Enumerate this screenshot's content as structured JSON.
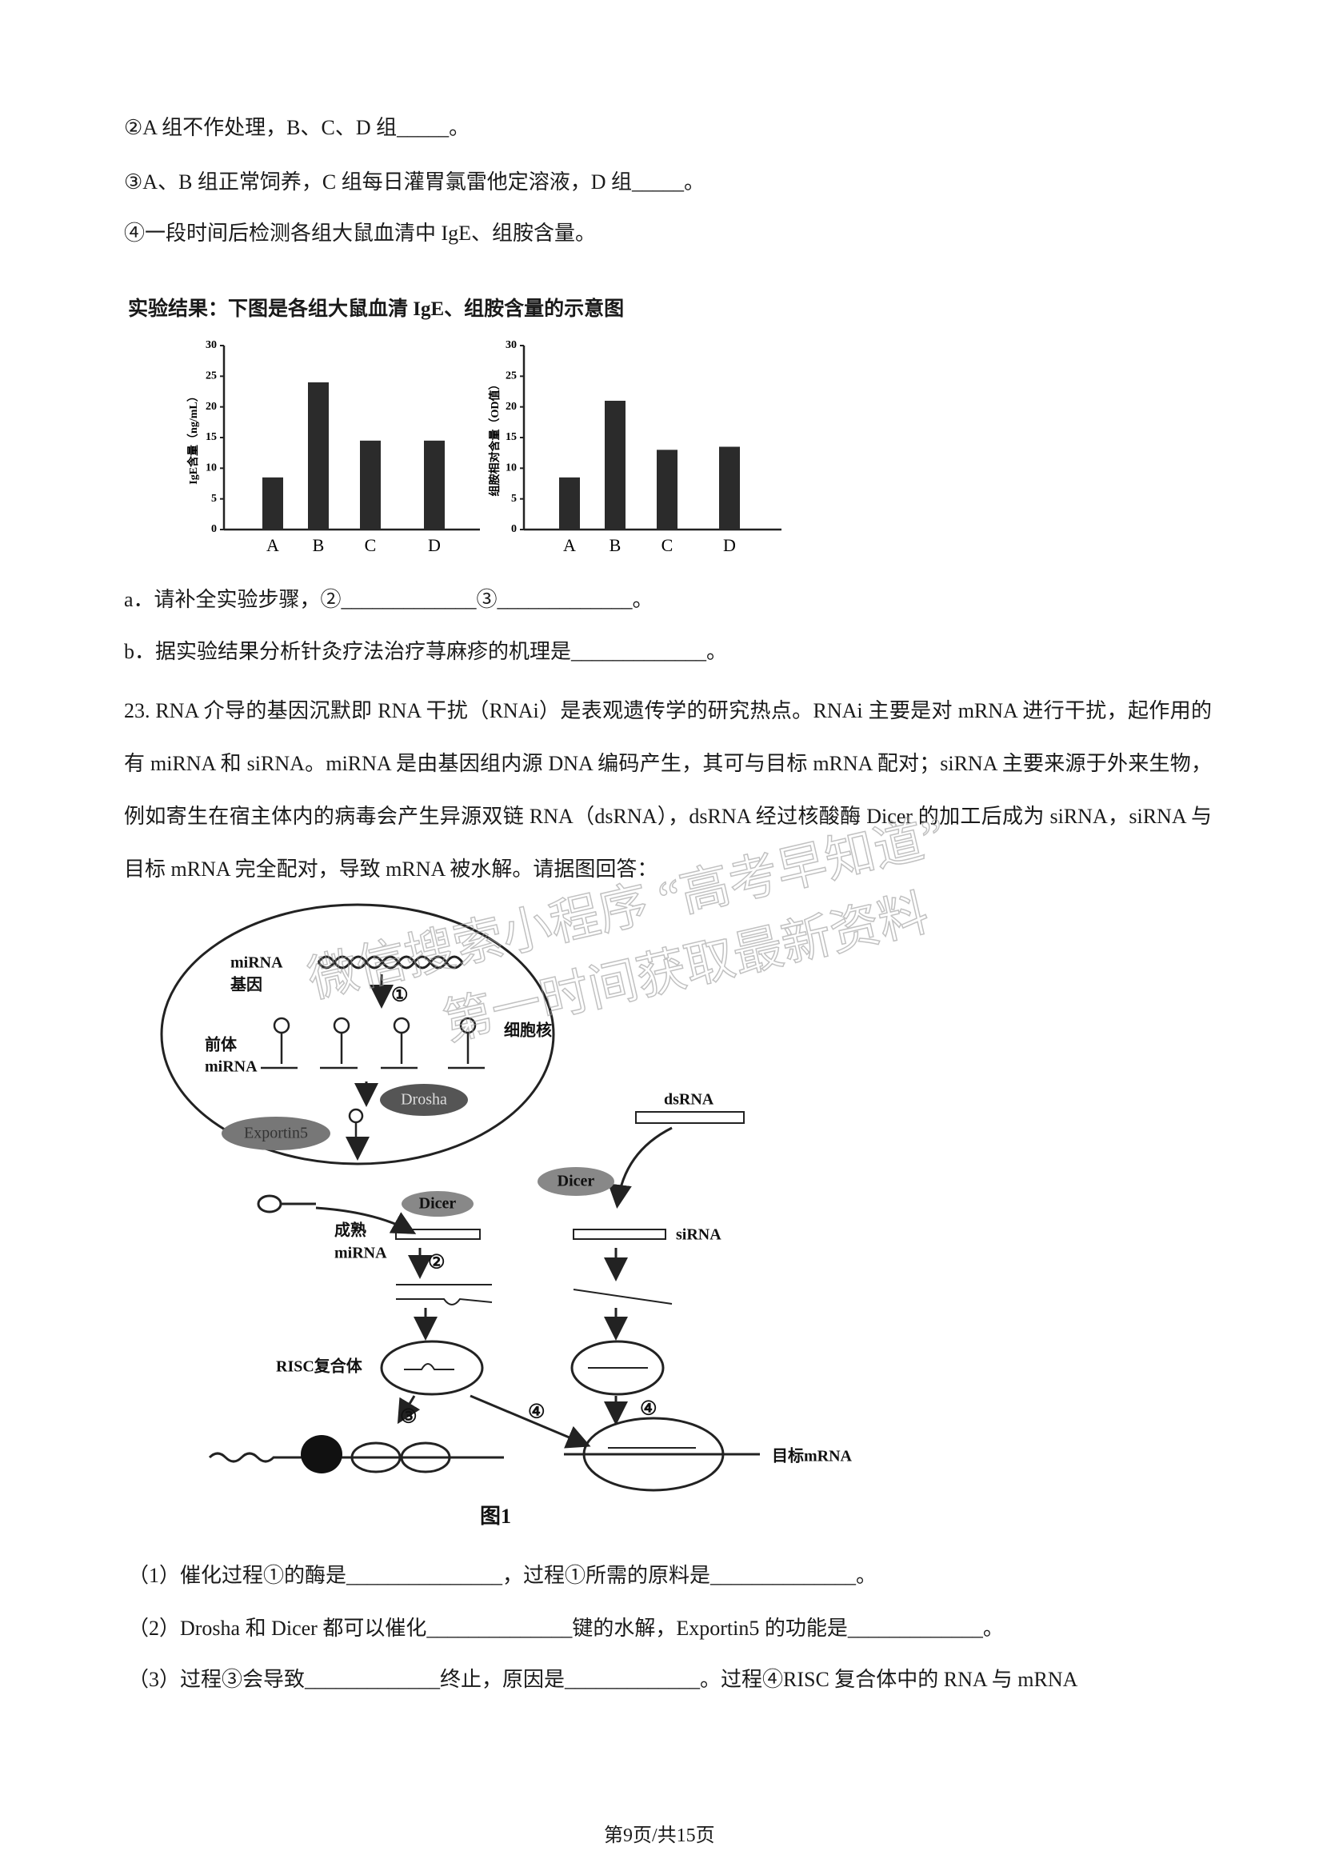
{
  "steps": [
    "②A 组不作处理，B、C、D 组_____。",
    "③A、B 组正常饲养，C 组每日灌胃氯雷他定溶液，D 组_____。",
    "④一段时间后检测各组大鼠血清中 IgE、组胺含量。"
  ],
  "figure_title": "实验结果：下图是各组大鼠血清 IgE、组胺含量的示意图",
  "chart_data": [
    {
      "type": "bar",
      "ylabel": "IgE含量（ng/mL）",
      "categories": [
        "A",
        "B",
        "C",
        "D"
      ],
      "values": [
        8.5,
        24,
        14.5,
        14.5
      ],
      "ylim": [
        0,
        30
      ],
      "yticks": [
        0,
        5,
        10,
        15,
        20,
        25,
        30
      ],
      "color": "#2b2b2b"
    },
    {
      "type": "bar",
      "ylabel": "组胺相对含量（OD值）",
      "categories": [
        "A",
        "B",
        "C",
        "D"
      ],
      "values": [
        8.5,
        21,
        13,
        13.5
      ],
      "ylim": [
        0,
        30
      ],
      "yticks": [
        0,
        5,
        10,
        15,
        20,
        25,
        30
      ],
      "color": "#2b2b2b"
    }
  ],
  "sub_questions": [
    "a．请补全实验步骤，②_____________③_____________。",
    "b．据实验结果分析针灸疗法治疗荨麻疹的机理是_____________。"
  ],
  "question_23": "23. RNA 介导的基因沉默即 RNA 干扰（RNAi）是表观遗传学的研究热点。RNAi 主要是对 mRNA 进行干扰，起作用的有 miRNA 和 siRNA。miRNA 是由基因组内源 DNA 编码产生，其可与目标 mRNA 配对；siRNA 主要来源于外来生物，例如寄生在宿主体内的病毒会产生异源双链 RNA（dsRNA），dsRNA 经过核酸酶 Dicer 的加工后成为 siRNA，siRNA 与目标 mRNA 完全配对，导致 mRNA 被水解。请据图回答：",
  "diagram": {
    "mirna": "miRNA",
    "gene": "基因",
    "step1": "①",
    "pre": "前体",
    "pre_mirna": "miRNA",
    "nucleus": "细胞核",
    "drosha": "Drosha",
    "exportin": "Exportin5",
    "dsrna": "dsRNA",
    "dicer_left": "Dicer",
    "dicer_right": "Dicer",
    "mature": "成熟",
    "mature_mirna": "miRNA",
    "step2": "②",
    "sirna": "siRNA",
    "risc": "RISC复合体",
    "step3": "③",
    "step4a": "④",
    "step4b": "④",
    "target": "目标mRNA",
    "caption": "图1"
  },
  "watermark": [
    "微信搜索小程序 “高考早知道”",
    "第一时间获取最新资料"
  ],
  "questions": [
    "（1）催化过程①的酶是_______________，过程①所需的原料是______________。",
    "（2）Drosha 和 Dicer 都可以催化______________键的水解，Exportin5 的功能是_____________。",
    "（3）过程③会导致_____________终止，原因是_____________。过程④RISC 复合体中的 RNA 与 mRNA"
  ],
  "footer": "第9页/共15页"
}
